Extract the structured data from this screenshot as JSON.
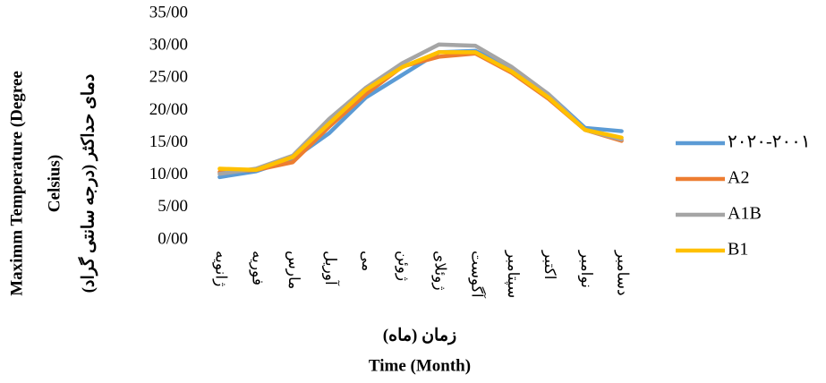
{
  "chart_data": {
    "type": "line",
    "y_label_lines": [
      "Maximm Temperature (Degree",
      "Celsius)"
    ],
    "y_label_fa": "دمای حداکثر (درجه سانتی گراد)",
    "x_label_fa": "زمان (ماه)",
    "x_label": "Time (Month)",
    "categories": [
      "ژانویه",
      "فوریه",
      "مارس",
      "آوریل",
      "می",
      "ژوئن",
      "ژوئلای",
      "آگوست",
      "سپتامبر",
      "اکتبر",
      "نوامبر",
      "دسامبر"
    ],
    "series": [
      {
        "name": "۲۰۲۰-۲۰۰۱",
        "color": "#5b9bd5",
        "values": [
          9.7,
          10.6,
          12.5,
          16.5,
          22,
          25.5,
          29,
          29.2,
          26.5,
          22.5,
          17.3,
          16.8
        ]
      },
      {
        "name": "A2",
        "color": "#ed7d31",
        "values": [
          10.5,
          10.8,
          12,
          17.5,
          22.5,
          26.8,
          28.3,
          28.8,
          25.8,
          21.8,
          17,
          15.3
        ]
      },
      {
        "name": "A1B",
        "color": "#a5a5a5",
        "values": [
          10.2,
          11,
          13,
          18.7,
          23.5,
          27.3,
          30.2,
          30,
          26.7,
          22.5,
          17,
          15.5
        ]
      },
      {
        "name": "B1",
        "color": "#ffc000",
        "values": [
          11,
          10.8,
          12.8,
          18,
          23.2,
          26.7,
          29,
          29,
          26,
          22,
          17,
          15.8
        ]
      }
    ],
    "ylim": [
      0,
      35
    ],
    "yticks": [
      {
        "value": 0,
        "label": "0/00"
      },
      {
        "value": 5,
        "label": "5/00"
      },
      {
        "value": 10,
        "label": "10/00"
      },
      {
        "value": 15,
        "label": "15/00"
      },
      {
        "value": 20,
        "label": "20/00"
      },
      {
        "value": 25,
        "label": "25/00"
      },
      {
        "value": 30,
        "label": "30/00"
      },
      {
        "value": 35,
        "label": "35/00"
      }
    ],
    "grid": false,
    "legend": "right"
  }
}
